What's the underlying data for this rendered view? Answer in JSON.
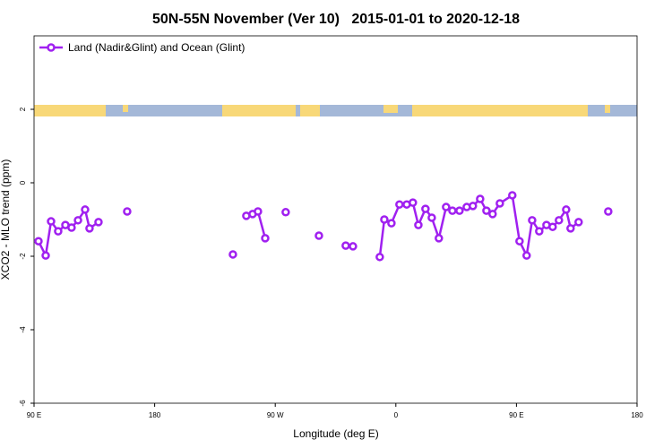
{
  "chart_data": {
    "type": "line",
    "title": "50N-55N November (Ver 10)   2015-01-01 to 2020-12-18",
    "x_label": "Longitude (deg E)",
    "y_label": "XCO2 - MLO trend (ppm)",
    "xlim": [
      90,
      540
    ],
    "ylim": [
      -6,
      4
    ],
    "xticks": [
      {
        "value": 90,
        "label": "90 E"
      },
      180,
      {
        "value": 270,
        "label": "90 W"
      },
      {
        "value": 360,
        "label": "0"
      },
      {
        "value": 450,
        "label": "90 E"
      },
      {
        "value": 540,
        "label": "180"
      }
    ],
    "yticks": [
      -6,
      -4,
      -2,
      0,
      2
    ],
    "legend": "top-left",
    "series": [
      {
        "name": "Land (Nadir&Glint) and Ocean (Glint)",
        "color": "#a020f0",
        "x": [
          93.3,
          98.7,
          102.7,
          108,
          113.4,
          118,
          122.8,
          128.1,
          131.4,
          138.1,
          null,
          159.5,
          null,
          238.4,
          null,
          248.4,
          253.1,
          257.1,
          262.5,
          null,
          277.8,
          null,
          302.6,
          null,
          322.6,
          null,
          328,
          null,
          348,
          351.4,
          356.7,
          362.7,
          368.1,
          372.7,
          376.8,
          382.1,
          386.8,
          392.1,
          397.5,
          402.2,
          407.5,
          412.9,
          417.5,
          422.9,
          427.6,
          432.2,
          437.6,
          446.9,
          452.3,
          457.6,
          461.7,
          467,
          472.4,
          477,
          481.7,
          487.1,
          490.4,
          496.4,
          null,
          518.5
        ],
        "values": [
          -1.59,
          -1.98,
          -1.05,
          -1.32,
          -1.15,
          -1.22,
          -1.02,
          -0.73,
          -1.24,
          -1.07,
          null,
          -0.78,
          null,
          -1.95,
          null,
          -0.9,
          -0.85,
          -0.78,
          -1.51,
          null,
          -0.8,
          null,
          -1.44,
          null,
          -1.71,
          null,
          -1.73,
          null,
          -2.02,
          -1.0,
          -1.1,
          -0.59,
          -0.59,
          -0.54,
          -1.15,
          -0.71,
          -0.95,
          -1.51,
          -0.66,
          -0.76,
          -0.76,
          -0.66,
          -0.63,
          -0.44,
          -0.76,
          -0.85,
          -0.56,
          -0.34,
          -1.59,
          -1.98,
          -1.02,
          -1.32,
          -1.15,
          -1.2,
          -1.02,
          -0.73,
          -1.24,
          -1.07,
          null,
          -0.78
        ]
      }
    ]
  }
}
